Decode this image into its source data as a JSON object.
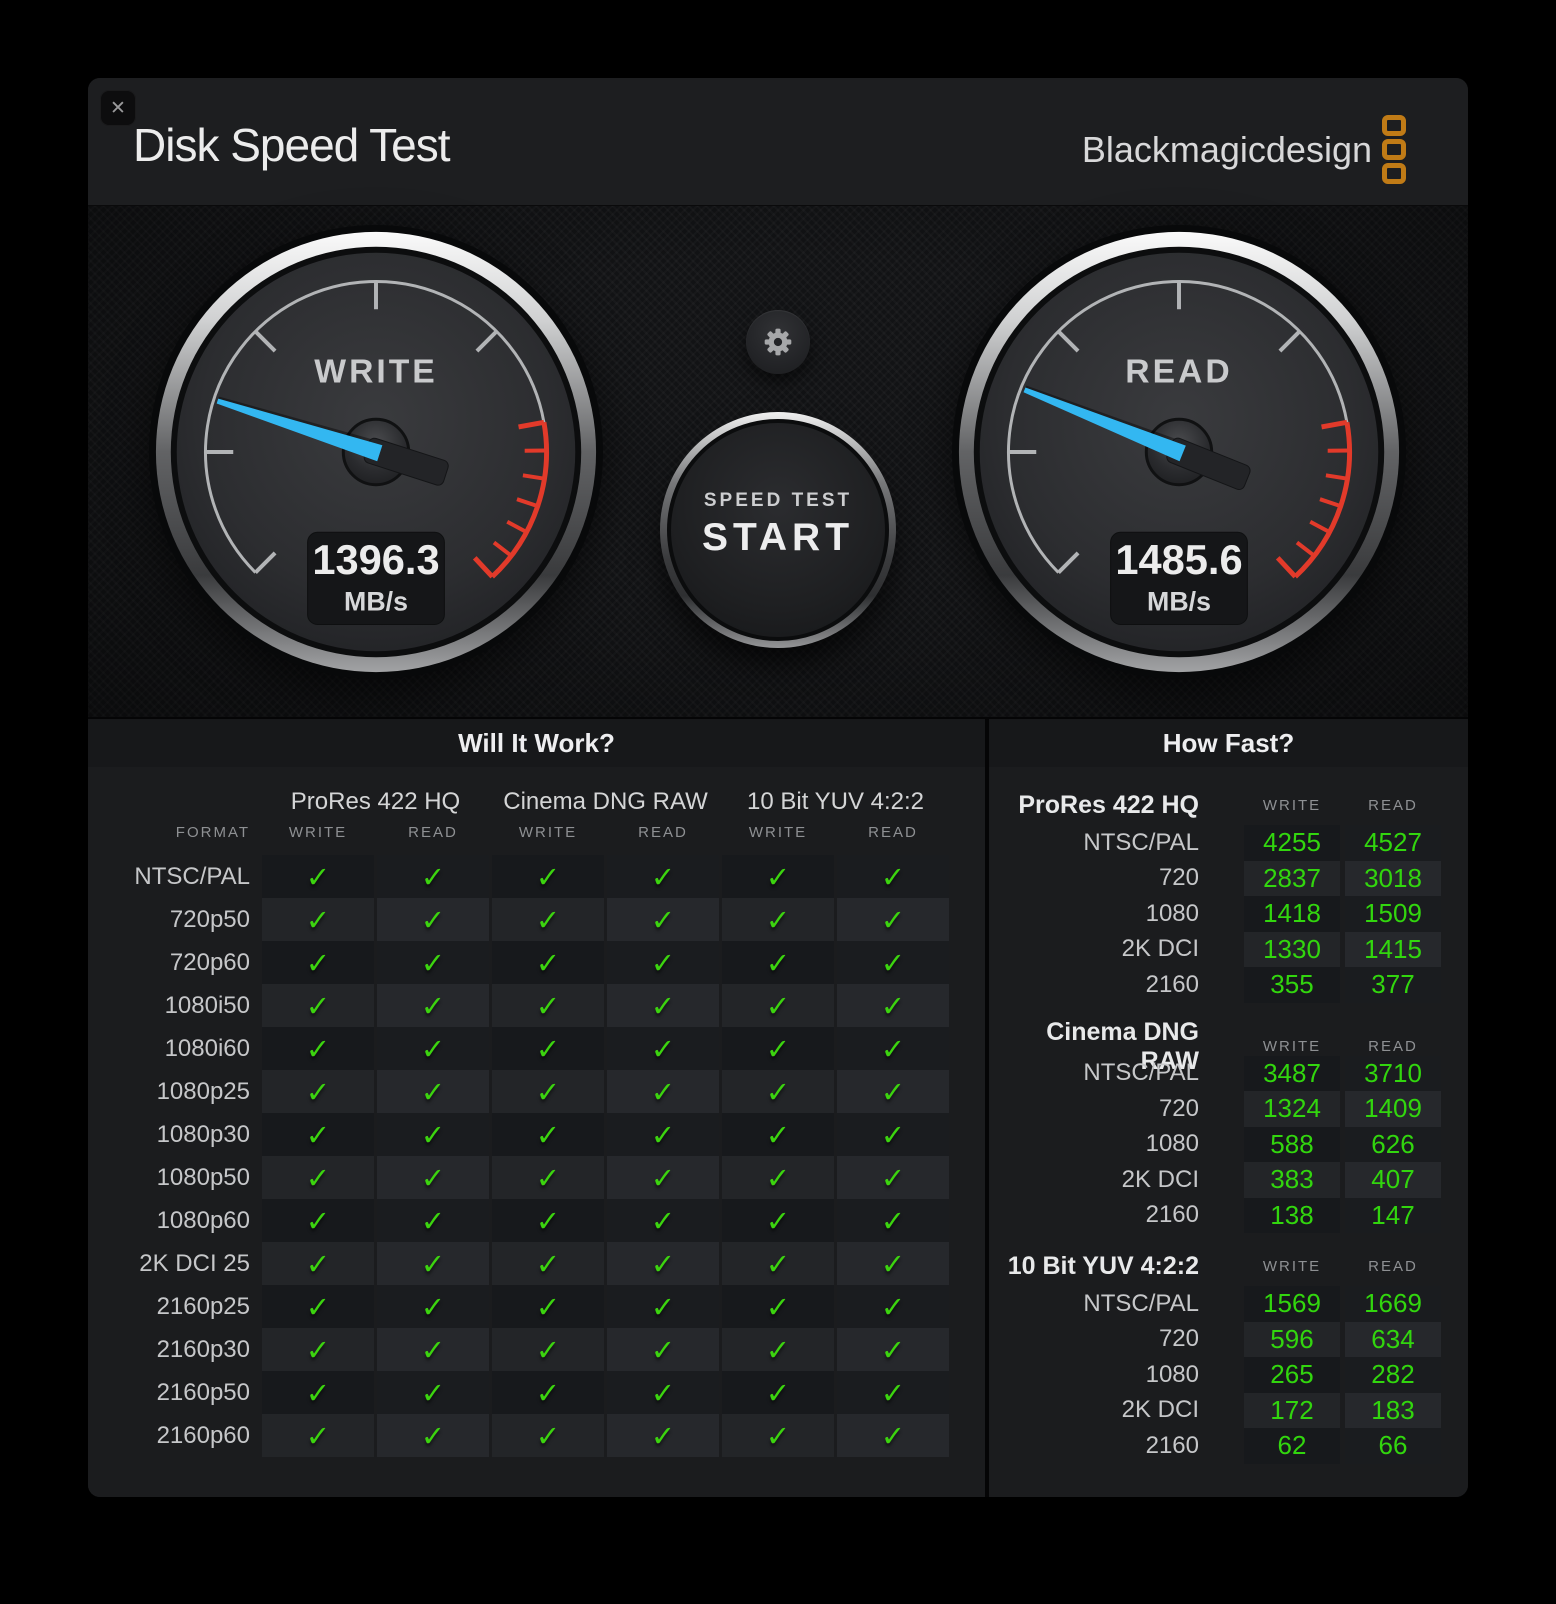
{
  "window": {
    "title": "Disk Speed Test",
    "close_glyph": "✕"
  },
  "logo": {
    "text": "Blackmagicdesign"
  },
  "controls": {
    "start_line1": "SPEED TEST",
    "start_line2": "START"
  },
  "gauges": [
    {
      "id": "write",
      "label": "WRITE",
      "value": "1396.3",
      "unit": "MB/s"
    },
    {
      "id": "read",
      "label": "READ",
      "value": "1485.6",
      "unit": "MB/s"
    }
  ],
  "will_it_work": {
    "title": "Will It Work?",
    "format_header": "FORMAT",
    "codec_groups": [
      "ProRes 422 HQ",
      "Cinema DNG RAW",
      "10 Bit YUV 4:2:2"
    ],
    "sub_headers": [
      "WRITE",
      "READ"
    ],
    "check_glyph": "✓",
    "rows": [
      {
        "format": "NTSC/PAL",
        "checks": [
          true,
          true,
          true,
          true,
          true,
          true
        ]
      },
      {
        "format": "720p50",
        "checks": [
          true,
          true,
          true,
          true,
          true,
          true
        ]
      },
      {
        "format": "720p60",
        "checks": [
          true,
          true,
          true,
          true,
          true,
          true
        ]
      },
      {
        "format": "1080i50",
        "checks": [
          true,
          true,
          true,
          true,
          true,
          true
        ]
      },
      {
        "format": "1080i60",
        "checks": [
          true,
          true,
          true,
          true,
          true,
          true
        ]
      },
      {
        "format": "1080p25",
        "checks": [
          true,
          true,
          true,
          true,
          true,
          true
        ]
      },
      {
        "format": "1080p30",
        "checks": [
          true,
          true,
          true,
          true,
          true,
          true
        ]
      },
      {
        "format": "1080p50",
        "checks": [
          true,
          true,
          true,
          true,
          true,
          true
        ]
      },
      {
        "format": "1080p60",
        "checks": [
          true,
          true,
          true,
          true,
          true,
          true
        ]
      },
      {
        "format": "2K DCI 25",
        "checks": [
          true,
          true,
          true,
          true,
          true,
          true
        ]
      },
      {
        "format": "2160p25",
        "checks": [
          true,
          true,
          true,
          true,
          true,
          true
        ]
      },
      {
        "format": "2160p30",
        "checks": [
          true,
          true,
          true,
          true,
          true,
          true
        ]
      },
      {
        "format": "2160p50",
        "checks": [
          true,
          true,
          true,
          true,
          true,
          true
        ]
      },
      {
        "format": "2160p60",
        "checks": [
          true,
          true,
          true,
          true,
          true,
          true
        ]
      }
    ]
  },
  "how_fast": {
    "title": "How Fast?",
    "sections": [
      {
        "codec": "ProRes 422 HQ",
        "write_header": "WRITE",
        "read_header": "READ",
        "rows": [
          [
            "NTSC/PAL",
            4255,
            4527
          ],
          [
            "720",
            2837,
            3018
          ],
          [
            "1080",
            1418,
            1509
          ],
          [
            "2K DCI",
            1330,
            1415
          ],
          [
            "2160",
            355,
            377
          ]
        ]
      },
      {
        "codec": "Cinema DNG RAW",
        "write_header": "WRITE",
        "read_header": "READ",
        "rows": [
          [
            "NTSC/PAL",
            3487,
            3710
          ],
          [
            "720",
            1324,
            1409
          ],
          [
            "1080",
            588,
            626
          ],
          [
            "2K DCI",
            383,
            407
          ],
          [
            "2160",
            138,
            147
          ]
        ]
      },
      {
        "codec": "10 Bit YUV 4:2:2",
        "write_header": "WRITE",
        "read_header": "READ",
        "rows": [
          [
            "NTSC/PAL",
            1569,
            1669
          ],
          [
            "720",
            596,
            634
          ],
          [
            "1080",
            265,
            282
          ],
          [
            "2K DCI",
            172,
            183
          ],
          [
            "2160",
            62,
            66
          ]
        ]
      }
    ]
  },
  "colors": {
    "logo_orange": "#c07b16",
    "needle_blue": "#33b7f1",
    "check_green": "#3cd40f",
    "number_green": "#32d60e",
    "redline_red": "#e23a2a"
  }
}
